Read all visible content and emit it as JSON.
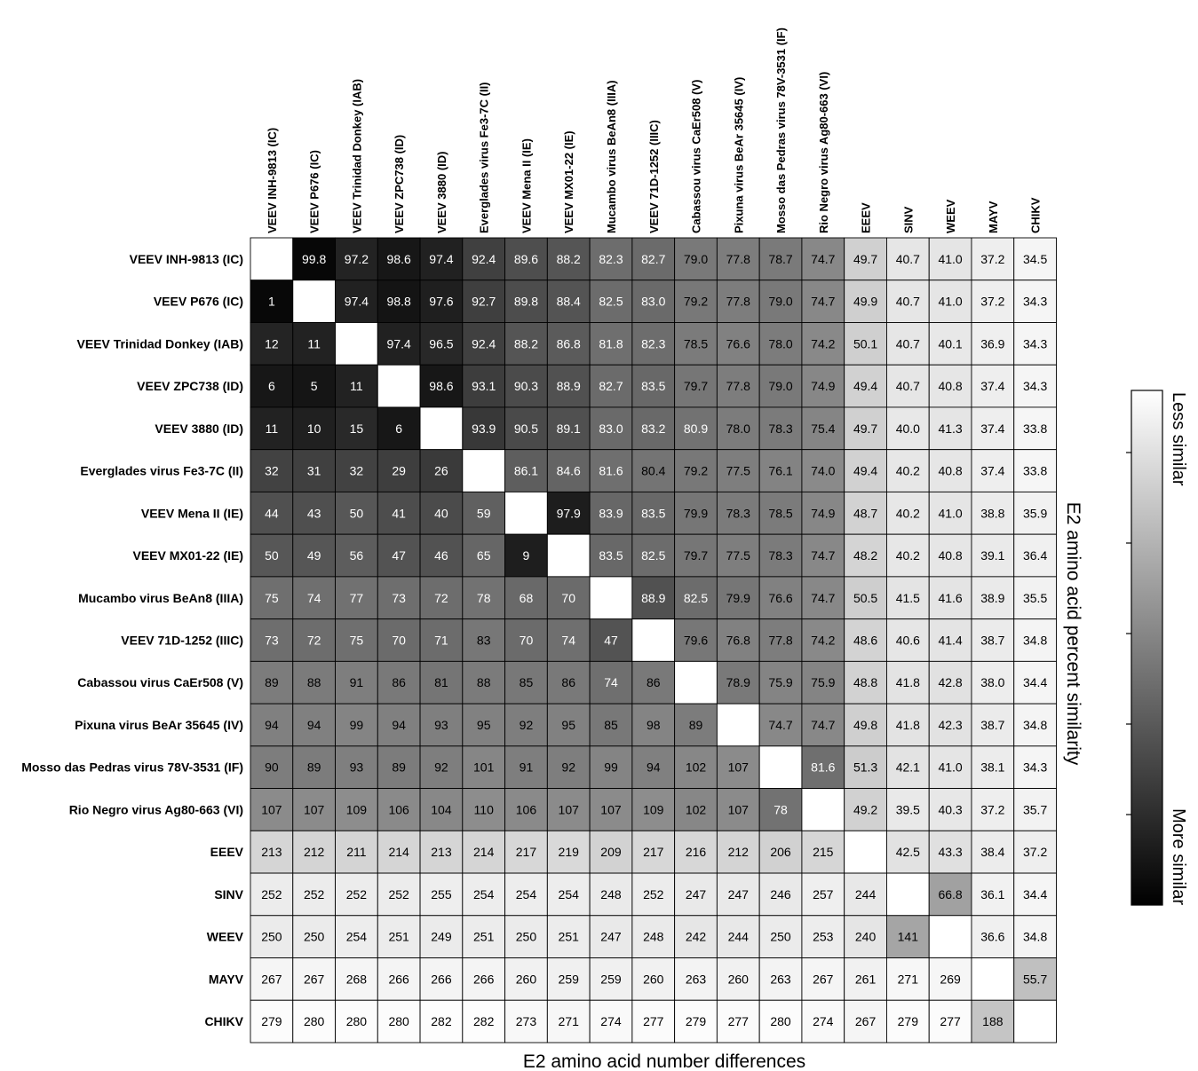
{
  "chart_data": {
    "type": "heatmap",
    "labels": [
      "VEEV INH-9813 (IC)",
      "VEEV P676 (IC)",
      "VEEV Trinidad Donkey (IAB)",
      "VEEV ZPC738 (ID)",
      "VEEV 3880 (ID)",
      "Everglades virus Fe3-7C (II)",
      "VEEV Mena II (IE)",
      "VEEV MX01-22 (IE)",
      "Mucambo virus BeAn8 (IIIA)",
      "VEEV 71D-1252 (IIIC)",
      "Cabassou virus CaEr508 (V)",
      "Pixuna virus BeAr 35645 (IV)",
      "Mosso das Pedras virus 78V-3531 (IF)",
      "Rio Negro virus Ag80-663 (VI)",
      "EEEV",
      "SINV",
      "WEEV",
      "MAYV",
      "CHIKV"
    ],
    "values": [
      [
        null,
        "99.8",
        "97.2",
        "98.6",
        "97.4",
        "92.4",
        "89.6",
        "88.2",
        "82.3",
        "82.7",
        "79.0",
        "77.8",
        "78.7",
        "74.7",
        "49.7",
        "40.7",
        "41.0",
        "37.2",
        "34.5"
      ],
      [
        "1",
        null,
        "97.4",
        "98.8",
        "97.6",
        "92.7",
        "89.8",
        "88.4",
        "82.5",
        "83.0",
        "79.2",
        "77.8",
        "79.0",
        "74.7",
        "49.9",
        "40.7",
        "41.0",
        "37.2",
        "34.3"
      ],
      [
        "12",
        "11",
        null,
        "97.4",
        "96.5",
        "92.4",
        "88.2",
        "86.8",
        "81.8",
        "82.3",
        "78.5",
        "76.6",
        "78.0",
        "74.2",
        "50.1",
        "40.7",
        "40.1",
        "36.9",
        "34.3"
      ],
      [
        "6",
        "5",
        "11",
        null,
        "98.6",
        "93.1",
        "90.3",
        "88.9",
        "82.7",
        "83.5",
        "79.7",
        "77.8",
        "79.0",
        "74.9",
        "49.4",
        "40.7",
        "40.8",
        "37.4",
        "34.3"
      ],
      [
        "11",
        "10",
        "15",
        "6",
        null,
        "93.9",
        "90.5",
        "89.1",
        "83.0",
        "83.2",
        "80.9",
        "78.0",
        "78.3",
        "75.4",
        "49.7",
        "40.0",
        "41.3",
        "37.4",
        "33.8"
      ],
      [
        "32",
        "31",
        "32",
        "29",
        "26",
        null,
        "86.1",
        "84.6",
        "81.6",
        "80.4",
        "79.2",
        "77.5",
        "76.1",
        "74.0",
        "49.4",
        "40.2",
        "40.8",
        "37.4",
        "33.8"
      ],
      [
        "44",
        "43",
        "50",
        "41",
        "40",
        "59",
        null,
        "97.9",
        "83.9",
        "83.5",
        "79.9",
        "78.3",
        "78.5",
        "74.9",
        "48.7",
        "40.2",
        "41.0",
        "38.8",
        "35.9"
      ],
      [
        "50",
        "49",
        "56",
        "47",
        "46",
        "65",
        "9",
        null,
        "83.5",
        "82.5",
        "79.7",
        "77.5",
        "78.3",
        "74.7",
        "48.2",
        "40.2",
        "40.8",
        "39.1",
        "36.4"
      ],
      [
        "75",
        "74",
        "77",
        "73",
        "72",
        "78",
        "68",
        "70",
        null,
        "88.9",
        "82.5",
        "79.9",
        "76.6",
        "74.7",
        "50.5",
        "41.5",
        "41.6",
        "38.9",
        "35.5"
      ],
      [
        "73",
        "72",
        "75",
        "70",
        "71",
        "83",
        "70",
        "74",
        "47",
        null,
        "79.6",
        "76.8",
        "77.8",
        "74.2",
        "48.6",
        "40.6",
        "41.4",
        "38.7",
        "34.8"
      ],
      [
        "89",
        "88",
        "91",
        "86",
        "81",
        "88",
        "85",
        "86",
        "74",
        "86",
        null,
        "78.9",
        "75.9",
        "75.9",
        "48.8",
        "41.8",
        "42.8",
        "38.0",
        "34.4"
      ],
      [
        "94",
        "94",
        "99",
        "94",
        "93",
        "95",
        "92",
        "95",
        "85",
        "98",
        "89",
        null,
        "74.7",
        "74.7",
        "49.8",
        "41.8",
        "42.3",
        "38.7",
        "34.8"
      ],
      [
        "90",
        "89",
        "93",
        "89",
        "92",
        "101",
        "91",
        "92",
        "99",
        "94",
        "102",
        "107",
        null,
        "81.6",
        "51.3",
        "42.1",
        "41.0",
        "38.1",
        "34.3"
      ],
      [
        "107",
        "107",
        "109",
        "106",
        "104",
        "110",
        "106",
        "107",
        "107",
        "109",
        "102",
        "107",
        "78",
        null,
        "49.2",
        "39.5",
        "40.3",
        "37.2",
        "35.7"
      ],
      [
        "213",
        "212",
        "211",
        "214",
        "213",
        "214",
        "217",
        "219",
        "209",
        "217",
        "216",
        "212",
        "206",
        "215",
        null,
        "42.5",
        "43.3",
        "38.4",
        "37.2"
      ],
      [
        "252",
        "252",
        "252",
        "252",
        "255",
        "254",
        "254",
        "254",
        "248",
        "252",
        "247",
        "247",
        "246",
        "257",
        "244",
        null,
        "66.8",
        "36.1",
        "34.4"
      ],
      [
        "250",
        "250",
        "254",
        "251",
        "249",
        "251",
        "250",
        "251",
        "247",
        "248",
        "242",
        "244",
        "250",
        "253",
        "240",
        "141",
        null,
        "36.6",
        "34.8"
      ],
      [
        "267",
        "267",
        "268",
        "266",
        "266",
        "266",
        "260",
        "259",
        "259",
        "260",
        "263",
        "260",
        "263",
        "267",
        "261",
        "271",
        "269",
        null,
        "55.7"
      ],
      [
        "279",
        "280",
        "280",
        "280",
        "282",
        "282",
        "273",
        "271",
        "274",
        "277",
        "279",
        "277",
        "280",
        "274",
        "267",
        "279",
        "277",
        "188",
        null
      ]
    ],
    "upper_triangle": "E2 amino acid percent similarity",
    "lower_triangle": "E2 amino acid number differences",
    "xlabel": "E2 amino acid number differences",
    "colorbar": {
      "title": "E2 amino acid percent similarity",
      "top_label": "Less similar",
      "bottom_label": "More similar",
      "top_color": "#ffffff",
      "bottom_color": "#000000"
    },
    "diagonal_color": "#ffffff"
  }
}
